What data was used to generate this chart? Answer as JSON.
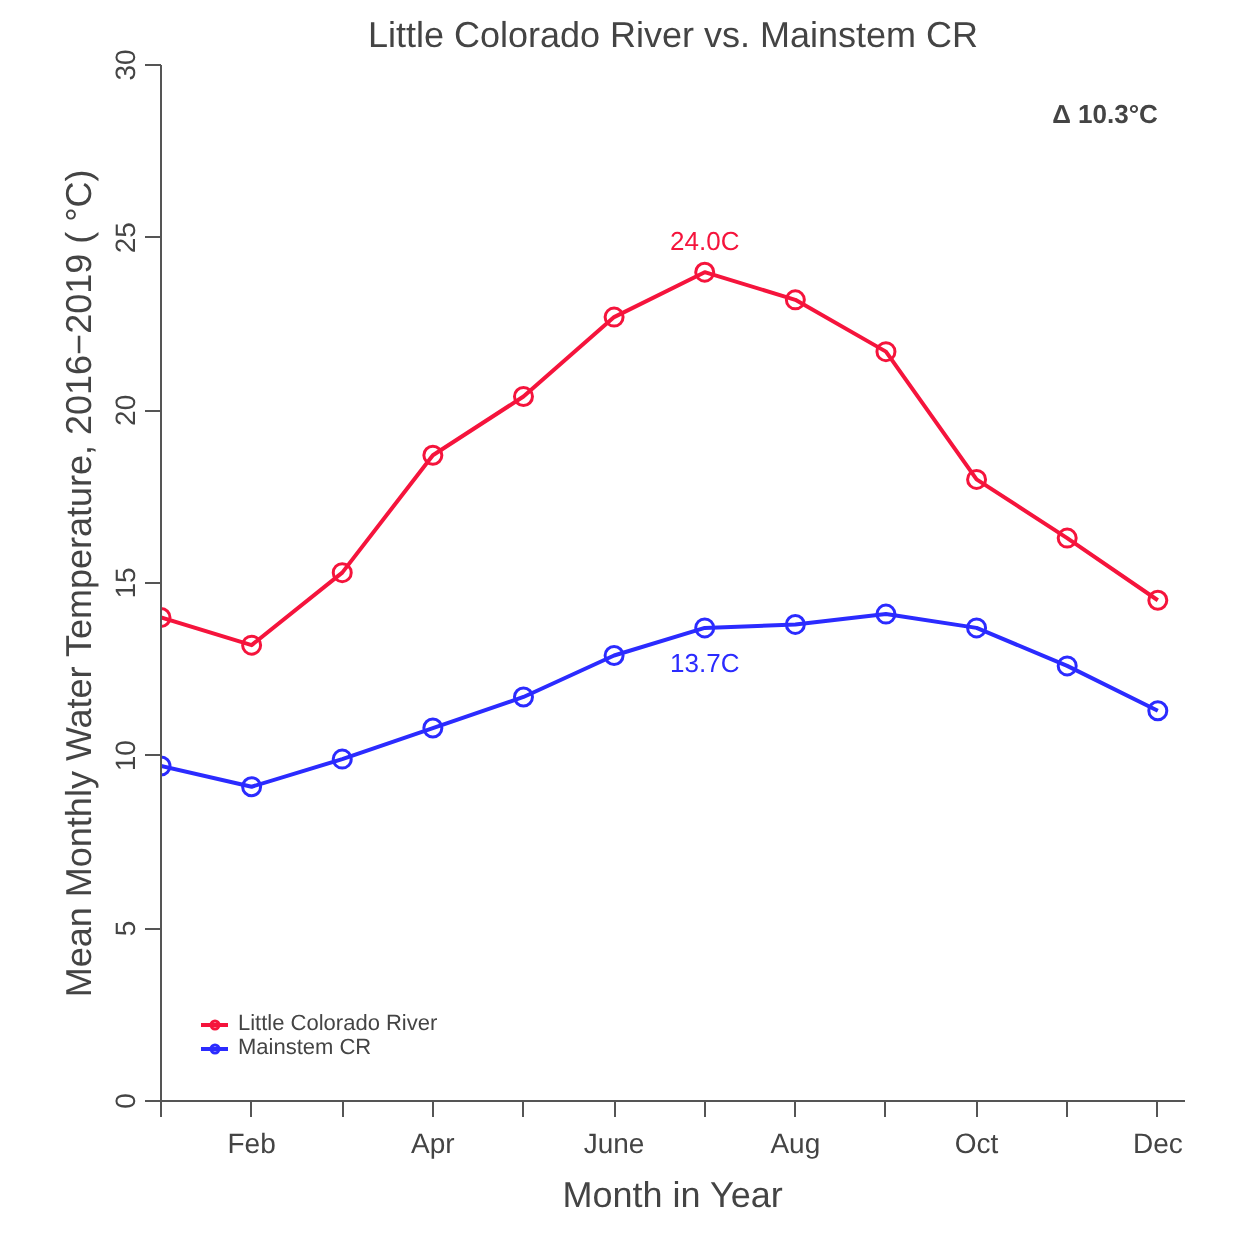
{
  "chart_data": {
    "type": "line",
    "title": "Little Colorado River vs. Mainstem CR",
    "xlabel": "Month in Year",
    "ylabel": "Mean Monthly Water Temperature, 2016−2019 ( °C)",
    "categories": [
      null,
      "Feb",
      null,
      "Apr",
      null,
      "June",
      null,
      "Aug",
      null,
      "Oct",
      null,
      "Dec"
    ],
    "ylim": [
      0,
      30
    ],
    "yticks": [
      0,
      5,
      10,
      15,
      20,
      25,
      30
    ],
    "series": [
      {
        "name": "Little Colorado River",
        "color": "#f5143c",
        "values": [
          14.0,
          13.2,
          15.3,
          18.7,
          20.4,
          22.7,
          24.0,
          23.2,
          21.7,
          18.0,
          16.3,
          14.5
        ],
        "value_labels": [
          null,
          null,
          null,
          null,
          null,
          null,
          "24.0C",
          null,
          null,
          null,
          null,
          null
        ]
      },
      {
        "name": "Mainstem CR",
        "color": "#2b2bff",
        "values": [
          9.7,
          9.1,
          9.9,
          10.8,
          11.7,
          12.9,
          13.7,
          13.8,
          14.1,
          13.7,
          12.6,
          11.3
        ],
        "value_labels": [
          null,
          null,
          null,
          null,
          null,
          null,
          "13.7C",
          null,
          null,
          null,
          null,
          null
        ]
      }
    ],
    "annotations": [
      "Δ 10.3°C"
    ],
    "marker": "circle",
    "line_style": "solid",
    "legend": "bottom left",
    "grid": false
  }
}
